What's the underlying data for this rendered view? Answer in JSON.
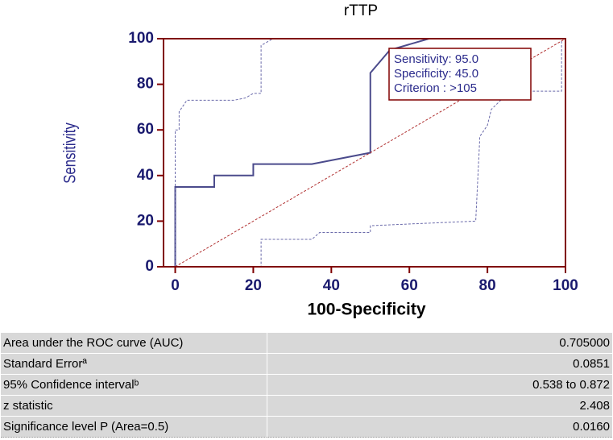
{
  "chart_data": {
    "type": "line",
    "title": "rTTP",
    "xlabel": "100-Specificity",
    "ylabel": "Sensitivity",
    "xlim": [
      -3,
      100
    ],
    "ylim": [
      0,
      100
    ],
    "xticks": [
      0,
      20,
      40,
      60,
      80,
      100
    ],
    "yticks": [
      0,
      20,
      40,
      60,
      80,
      100
    ],
    "frame_color": "#800000",
    "series": [
      {
        "color": "#4b4b8c",
        "dashed": false,
        "width": 2,
        "x": [
          0,
          0,
          10,
          10,
          20,
          20,
          35,
          50,
          50,
          55,
          65,
          100
        ],
        "values": [
          0,
          35,
          35,
          40,
          40,
          45,
          45,
          50,
          85,
          95,
          100,
          100
        ]
      },
      {
        "color": "#6a6aaa",
        "dashed": true,
        "width": 1,
        "x": [
          0,
          0,
          1,
          1,
          3,
          15,
          18,
          20,
          22,
          22,
          25,
          100
        ],
        "values": [
          0,
          60,
          60,
          68,
          73,
          73,
          74,
          76,
          76,
          97,
          100,
          100
        ]
      },
      {
        "color": "#6a6aaa",
        "dashed": true,
        "width": 1,
        "x": [
          0,
          22,
          22,
          35,
          37,
          50,
          50,
          77,
          78,
          78,
          80,
          81,
          84,
          88,
          99,
          99
        ],
        "values": [
          0,
          0,
          12,
          12,
          15,
          15,
          18,
          20,
          55,
          57,
          62,
          69,
          74,
          77,
          77,
          100
        ]
      },
      {
        "color": "#b03030",
        "dashed": true,
        "width": 1,
        "x": [
          0,
          100
        ],
        "values": [
          0,
          100
        ]
      }
    ],
    "annotation": [
      "Sensitivity: 95.0",
      "Specificity: 45.0",
      "Criterion : >105"
    ]
  },
  "table": {
    "rows": [
      [
        "Area under the ROC curve (AUC)",
        "0.705000"
      ],
      [
        "Standard Errorª",
        "0.0851"
      ],
      [
        "95% Confidence intervalᵇ",
        "0.538 to 0.872"
      ],
      [
        "z statistic",
        "2.408"
      ],
      [
        "Significance level P (Area=0.5)",
        "0.0160"
      ]
    ]
  }
}
